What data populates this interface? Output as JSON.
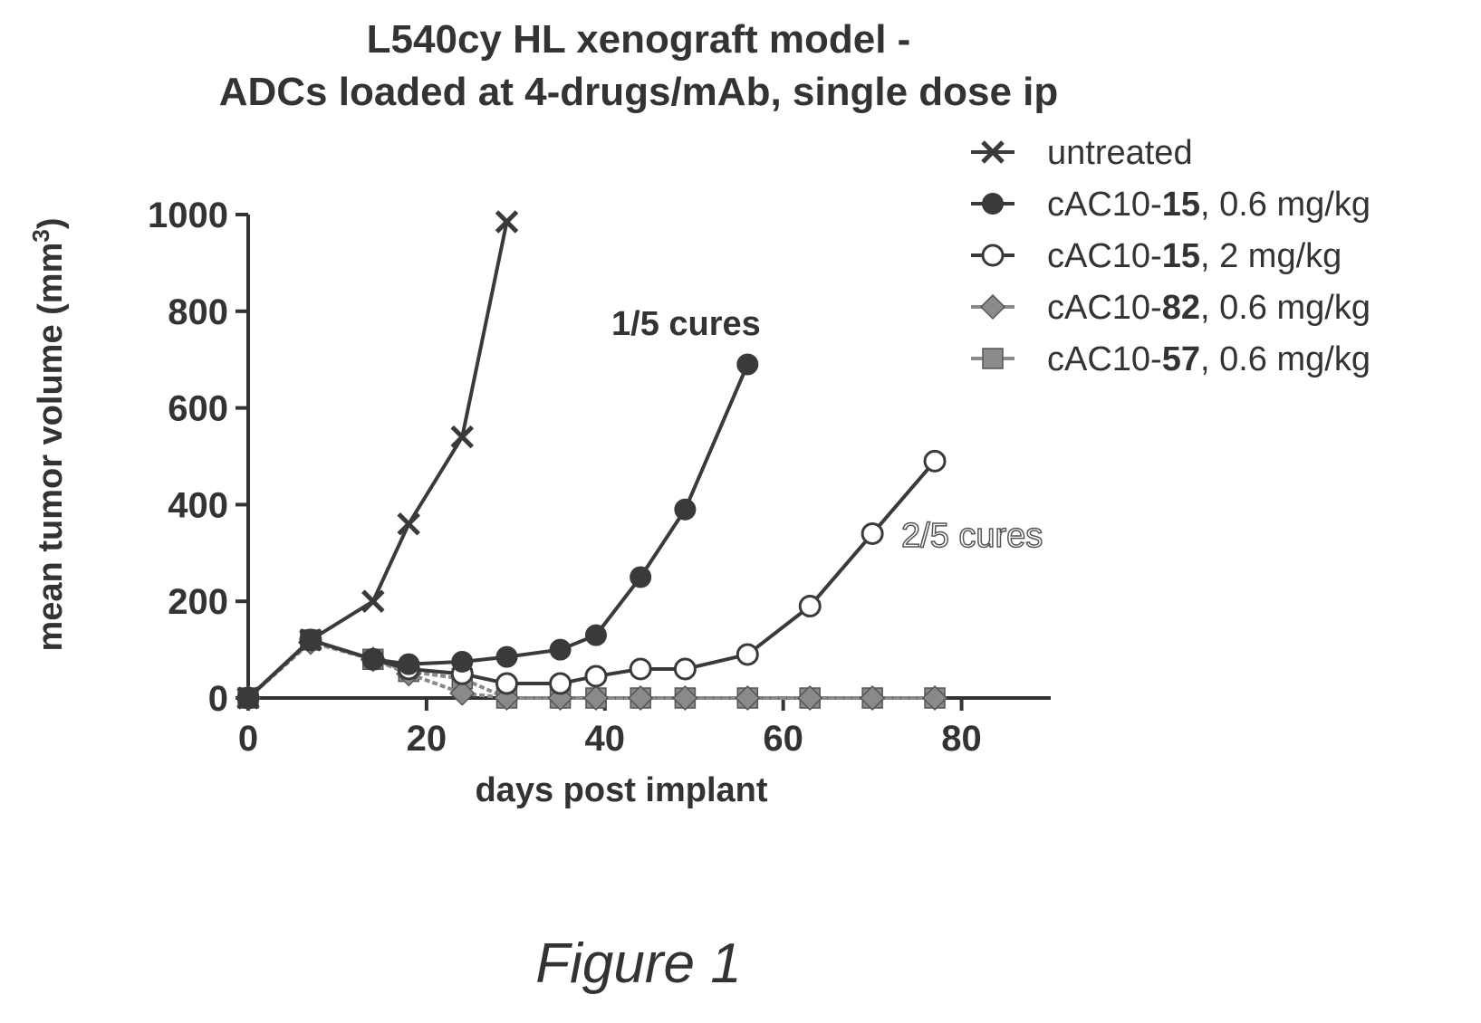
{
  "chart_data": {
    "type": "line",
    "title_line1": "L540cy HL xenograft model -",
    "title_line2": "ADCs loaded at 4-drugs/mAb, single dose ip",
    "xlabel": "days post implant",
    "ylabel": "mean tumor volume (mm",
    "ylabel_sup": "3",
    "ylabel_close": ")",
    "xlim": [
      0,
      90
    ],
    "ylim": [
      0,
      1000
    ],
    "xticks": [
      0,
      20,
      40,
      60,
      80
    ],
    "yticks": [
      0,
      200,
      400,
      600,
      800,
      1000
    ],
    "grid": false,
    "legend_position": "top-right",
    "series": [
      {
        "name": "untreated",
        "name_parts": [
          "untreated"
        ],
        "marker": "x",
        "color": "#3a3a3a",
        "x": [
          0,
          7,
          14,
          18,
          24,
          29
        ],
        "y": [
          0,
          120,
          200,
          360,
          540,
          985
        ]
      },
      {
        "name": "cAC10-15, 0.6 mg/kg",
        "name_parts": [
          "cAC10-",
          "15",
          ", 0.6 mg/kg"
        ],
        "marker": "filled-circle",
        "color": "#3a3a3a",
        "x": [
          0,
          7,
          14,
          18,
          24,
          29,
          35,
          39,
          44,
          49,
          56
        ],
        "y": [
          0,
          120,
          80,
          70,
          75,
          85,
          100,
          130,
          250,
          390,
          690
        ]
      },
      {
        "name": "cAC10-15, 2 mg/kg",
        "name_parts": [
          "cAC10-",
          "15",
          ", 2 mg/kg"
        ],
        "marker": "open-circle",
        "color": "#3a3a3a",
        "x": [
          0,
          7,
          14,
          18,
          24,
          29,
          35,
          39,
          44,
          49,
          56,
          63,
          70,
          77
        ],
        "y": [
          0,
          120,
          80,
          60,
          50,
          30,
          30,
          45,
          60,
          60,
          90,
          190,
          340,
          490
        ]
      },
      {
        "name": "cAC10-82, 0.6 mg/kg",
        "name_parts": [
          "cAC10-",
          "82",
          ", 0.6 mg/kg"
        ],
        "marker": "diamond",
        "color": "#8a8a8a",
        "x": [
          0,
          7,
          14,
          18,
          24,
          29,
          35,
          39,
          44,
          49,
          56,
          63,
          70,
          77
        ],
        "y": [
          0,
          115,
          80,
          50,
          10,
          0,
          0,
          0,
          0,
          0,
          0,
          0,
          0,
          0
        ]
      },
      {
        "name": "cAC10-57, 0.6 mg/kg",
        "name_parts": [
          "cAC10-",
          "57",
          ", 0.6 mg/kg"
        ],
        "marker": "square",
        "color": "#8a8a8a",
        "x": [
          0,
          7,
          14,
          18,
          24,
          29,
          35,
          39,
          44,
          49,
          56,
          63,
          70,
          77
        ],
        "y": [
          0,
          120,
          80,
          55,
          40,
          0,
          0,
          0,
          0,
          0,
          0,
          0,
          0,
          0
        ]
      }
    ],
    "annotations": [
      {
        "text": "1/5 cures",
        "style": "bold"
      },
      {
        "text": "2/5 cures",
        "style": "outline"
      }
    ]
  },
  "caption": "Figure 1"
}
